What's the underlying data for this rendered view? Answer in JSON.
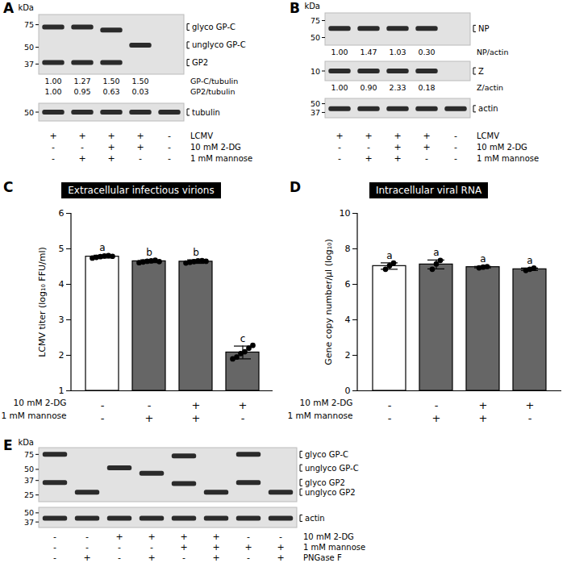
{
  "chart_data": [
    {
      "type": "bar",
      "panel_label": "C",
      "title": "Extracellular infectious virions",
      "ylabel": "LCMV titer (log₁₀ FFU/ml)",
      "categories": [
        null,
        null,
        null,
        null
      ],
      "values": [
        4.78,
        4.65,
        4.64,
        2.08
      ],
      "errors": [
        0.04,
        0.04,
        0.05,
        0.18
      ],
      "points": [
        [
          4.74,
          4.76,
          4.78,
          4.8,
          4.81,
          4.79
        ],
        [
          4.61,
          4.63,
          4.65,
          4.66,
          4.68,
          4.64
        ],
        [
          4.6,
          4.62,
          4.64,
          4.66,
          4.67,
          4.65
        ],
        [
          1.9,
          1.95,
          2.05,
          2.1,
          2.2,
          2.28
        ]
      ],
      "significance_labels": [
        "a",
        "b",
        "b",
        "c"
      ],
      "colors": [
        "#ffffff",
        "#666666",
        "#666666",
        "#666666"
      ],
      "ylim": [
        1,
        6
      ],
      "yticks": [
        1,
        2,
        3,
        4,
        5,
        6
      ],
      "tick_labels": "y",
      "conditions": [
        {
          "label": "10 mM 2-DG",
          "values": [
            "-",
            "-",
            "+",
            "+"
          ]
        },
        {
          "label": "1 mM mannose",
          "values": [
            "-",
            "+",
            "+",
            "-"
          ]
        }
      ]
    },
    {
      "type": "bar",
      "panel_label": "D",
      "title": "Intracellular viral RNA",
      "ylabel": "Gene copy number/µl (log₁₀)",
      "categories": [
        null,
        null,
        null,
        null
      ],
      "values": [
        7.03,
        7.12,
        6.97,
        6.85
      ],
      "errors": [
        0.18,
        0.25,
        0.04,
        0.07
      ],
      "points": [
        [
          6.85,
          7.05,
          7.2
        ],
        [
          6.85,
          7.15,
          7.35
        ],
        [
          6.93,
          6.97,
          7.0
        ],
        [
          6.78,
          6.85,
          6.92
        ]
      ],
      "significance_labels": [
        "a",
        "a",
        "a",
        "a"
      ],
      "colors": [
        "#ffffff",
        "#666666",
        "#666666",
        "#666666"
      ],
      "ylim": [
        0,
        10
      ],
      "yticks": [
        0,
        2,
        4,
        6,
        8,
        10
      ],
      "tick_labels": "y",
      "conditions": [
        {
          "label": "10 mM 2-DG",
          "values": [
            "-",
            "-",
            "+",
            "+"
          ]
        },
        {
          "label": "1 mM mannose",
          "values": [
            "-",
            "+",
            "+",
            "-"
          ]
        }
      ]
    }
  ],
  "blots": [
    {
      "panel_label": "A",
      "unit": "kDa",
      "lanes": 5,
      "items": [
        {
          "kind": "gel",
          "markers": [
            75,
            50,
            37
          ],
          "bands": [
            [
              72,
              38
            ],
            [
              72,
              38
            ],
            [
              68,
              38
            ],
            [
              52
            ],
            []
          ],
          "labels": [
            {
              "text": "glyco GP-C",
              "kda": 72
            },
            {
              "text": "unglyco GP-C",
              "kda": 52
            },
            {
              "text": "GP2",
              "kda": 38
            }
          ]
        },
        {
          "kind": "quant",
          "rows": [
            {
              "label": "GP-C/tubulin",
              "values": [
                "1.00",
                "1.27",
                "1.50",
                "1.50"
              ]
            },
            {
              "label": "GP2/tubulin",
              "values": [
                "1.00",
                "0.95",
                "0.63",
                "0.03"
              ]
            }
          ]
        },
        {
          "kind": "gel",
          "markers": [
            50
          ],
          "bands": [
            [
              50
            ],
            [
              50
            ],
            [
              50
            ],
            [
              50
            ],
            [
              50
            ]
          ],
          "labels": [
            {
              "text": "tubulin",
              "kda": 50
            }
          ]
        }
      ],
      "conditions": [
        {
          "label": "LCMV",
          "values": [
            "+",
            "+",
            "+",
            "+",
            "-"
          ]
        },
        {
          "label": "10 mM 2-DG",
          "values": [
            "-",
            "-",
            "+",
            "+",
            "-"
          ]
        },
        {
          "label": "1 mM mannose",
          "values": [
            "-",
            "+",
            "+",
            "-",
            "-"
          ]
        }
      ]
    },
    {
      "panel_label": "B",
      "unit": "kDa",
      "lanes": 5,
      "items": [
        {
          "kind": "gel",
          "markers": [
            75,
            50
          ],
          "bands": [
            [
              62
            ],
            [
              62
            ],
            [
              62
            ],
            [
              62
            ],
            []
          ],
          "labels": [
            {
              "text": "NP",
              "kda": 62
            }
          ]
        },
        {
          "kind": "quant",
          "rows": [
            {
              "label": "NP/actin",
              "values": [
                "1.00",
                "1.47",
                "1.03",
                "0.30"
              ]
            }
          ]
        },
        {
          "kind": "gel",
          "markers": [
            10
          ],
          "bands": [
            [
              10
            ],
            [
              10
            ],
            [
              10
            ],
            [
              10
            ],
            []
          ],
          "labels": [
            {
              "text": "Z",
              "kda": 10
            }
          ]
        },
        {
          "kind": "quant",
          "rows": [
            {
              "label": "Z/actin",
              "values": [
                "1.00",
                "0.90",
                "2.33",
                "0.18"
              ]
            }
          ]
        },
        {
          "kind": "gel",
          "markers": [
            50,
            37
          ],
          "bands": [
            [
              42
            ],
            [
              42
            ],
            [
              42
            ],
            [
              42
            ],
            [
              42
            ]
          ],
          "labels": [
            {
              "text": "actin",
              "kda": 42
            }
          ]
        }
      ],
      "conditions": [
        {
          "label": "LCMV",
          "values": [
            "+",
            "+",
            "+",
            "+",
            "-"
          ]
        },
        {
          "label": "10 mM 2-DG",
          "values": [
            "-",
            "-",
            "+",
            "+",
            "-"
          ]
        },
        {
          "label": "1 mM mannose",
          "values": [
            "-",
            "+",
            "+",
            "-",
            "-"
          ]
        }
      ]
    },
    {
      "panel_label": "E",
      "unit": "kDa",
      "lanes": 8,
      "items": [
        {
          "kind": "gel",
          "markers": [
            75,
            50,
            37,
            25
          ],
          "bands": [
            [
              75,
              35
            ],
            [
              27
            ],
            [
              52
            ],
            [
              45
            ],
            [
              72,
              34
            ],
            [
              27
            ],
            [
              75,
              35
            ],
            [
              27
            ]
          ],
          "labels": [
            {
              "text": "glyco GP-C",
              "kda": 75
            },
            {
              "text": "unglyco GP-C",
              "kda": 52
            },
            {
              "text": "glyco GP2",
              "kda": 35
            },
            {
              "text": "unglyco GP2",
              "kda": 27
            }
          ]
        },
        {
          "kind": "gel",
          "markers": [
            50,
            37
          ],
          "bands": [
            [
              42
            ],
            [
              42
            ],
            [
              42
            ],
            [
              42
            ],
            [
              42
            ],
            [
              42
            ],
            [
              42
            ],
            [
              42
            ]
          ],
          "labels": [
            {
              "text": "actin",
              "kda": 42
            }
          ]
        }
      ],
      "conditions": [
        {
          "label": "10 mM 2-DG",
          "values": [
            "-",
            "-",
            "+",
            "+",
            "+",
            "+",
            "-",
            "-"
          ]
        },
        {
          "label": "1 mM mannose",
          "values": [
            "-",
            "-",
            "-",
            "-",
            "+",
            "+",
            "+",
            "+"
          ]
        },
        {
          "label": "PNGase F",
          "values": [
            "-",
            "+",
            "-",
            "+",
            "-",
            "+",
            "-",
            "+"
          ]
        }
      ]
    }
  ]
}
